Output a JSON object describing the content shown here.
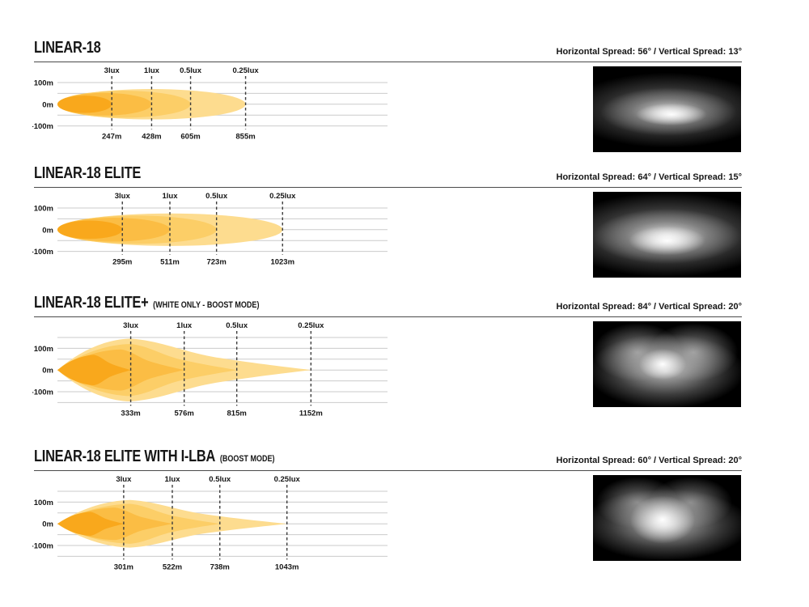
{
  "page": {
    "background": "#ffffff"
  },
  "sections": [
    {
      "title": "LINEAR-18",
      "subtitle": "",
      "spread_text": "Horizontal Spread: 56° / Vertical Spread: 13°"
    },
    {
      "title": "LINEAR-18 ELITE",
      "subtitle": "",
      "spread_text": "Horizontal Spread: 64° / Vertical Spread: 15°"
    },
    {
      "title": "LINEAR-18 ELITE+",
      "subtitle": "(WHITE ONLY - BOOST MODE)",
      "spread_text": "Horizontal Spread: 84° / Vertical Spread: 20°"
    },
    {
      "title": "LINEAR-18 ELITE WITH I-LBA",
      "subtitle": "(BOOST MODE)",
      "spread_text": "Horizontal Spread: 60° / Vertical Spread: 20°"
    }
  ],
  "chart_data": [
    {
      "type": "area",
      "model": "LINEAR-18",
      "beam_shape": "ellipse",
      "x_unit": "m",
      "x_range": [
        0,
        1500
      ],
      "y_grid_max_m": 100,
      "y_grid_step_m": 50,
      "y_tick_labels": [
        "100m",
        "0m",
        "-100m"
      ],
      "series": [
        {
          "lux": "3lux",
          "distance_m": 247,
          "distance_label": "247m",
          "half_height_m": 40
        },
        {
          "lux": "1lux",
          "distance_m": 428,
          "distance_label": "428m",
          "half_height_m": 52
        },
        {
          "lux": "0.5lux",
          "distance_m": 605,
          "distance_label": "605m",
          "half_height_m": 62
        },
        {
          "lux": "0.25lux",
          "distance_m": 855,
          "distance_label": "855m",
          "half_height_m": 70
        }
      ],
      "beam_colors_inner_to_outer": [
        "#F9A81C",
        "#FBBD44",
        "#FCCE67",
        "#FDDC8F"
      ]
    },
    {
      "type": "area",
      "model": "LINEAR-18 ELITE",
      "beam_shape": "ellipse",
      "x_unit": "m",
      "x_range": [
        0,
        1500
      ],
      "y_grid_max_m": 100,
      "y_grid_step_m": 50,
      "y_tick_labels": [
        "100m",
        "0m",
        "-100m"
      ],
      "series": [
        {
          "lux": "3lux",
          "distance_m": 295,
          "distance_label": "295m",
          "half_height_m": 42
        },
        {
          "lux": "1lux",
          "distance_m": 511,
          "distance_label": "511m",
          "half_height_m": 55
        },
        {
          "lux": "0.5lux",
          "distance_m": 723,
          "distance_label": "723m",
          "half_height_m": 65
        },
        {
          "lux": "0.25lux",
          "distance_m": 1023,
          "distance_label": "1023m",
          "half_height_m": 75
        }
      ],
      "beam_colors_inner_to_outer": [
        "#F9A81C",
        "#FBBD44",
        "#FCCE67",
        "#FDDC8F"
      ]
    },
    {
      "type": "area",
      "model": "LINEAR-18 ELITE+ (WHITE ONLY - BOOST MODE)",
      "beam_shape": "spear",
      "x_unit": "m",
      "x_range": [
        0,
        1500
      ],
      "y_grid_max_m": 150,
      "y_grid_step_m": 50,
      "y_tick_labels": [
        "100m",
        "0m",
        "-100m"
      ],
      "series": [
        {
          "lux": "3lux",
          "distance_m": 333,
          "distance_label": "333m",
          "half_height_m": 70
        },
        {
          "lux": "1lux",
          "distance_m": 576,
          "distance_label": "576m",
          "half_height_m": 95
        },
        {
          "lux": "0.5lux",
          "distance_m": 815,
          "distance_label": "815m",
          "half_height_m": 120
        },
        {
          "lux": "0.25lux",
          "distance_m": 1152,
          "distance_label": "1152m",
          "half_height_m": 145
        }
      ],
      "beam_colors_inner_to_outer": [
        "#F9A81C",
        "#FBBD44",
        "#FCCE67",
        "#FDDC8F"
      ]
    },
    {
      "type": "area",
      "model": "LINEAR-18 ELITE WITH I-LBA (BOOST MODE)",
      "beam_shape": "spear",
      "x_unit": "m",
      "x_range": [
        0,
        1500
      ],
      "y_grid_max_m": 150,
      "y_grid_step_m": 50,
      "y_tick_labels": [
        "100m",
        "0m",
        "-100m"
      ],
      "series": [
        {
          "lux": "3lux",
          "distance_m": 301,
          "distance_label": "301m",
          "half_height_m": 55
        },
        {
          "lux": "1lux",
          "distance_m": 522,
          "distance_label": "522m",
          "half_height_m": 75
        },
        {
          "lux": "0.5lux",
          "distance_m": 738,
          "distance_label": "738m",
          "half_height_m": 92
        },
        {
          "lux": "0.25lux",
          "distance_m": 1043,
          "distance_label": "1043m",
          "half_height_m": 110
        }
      ],
      "beam_colors_inner_to_outer": [
        "#F9A81C",
        "#FBBD44",
        "#FCCE67",
        "#FDDC8F"
      ]
    }
  ]
}
